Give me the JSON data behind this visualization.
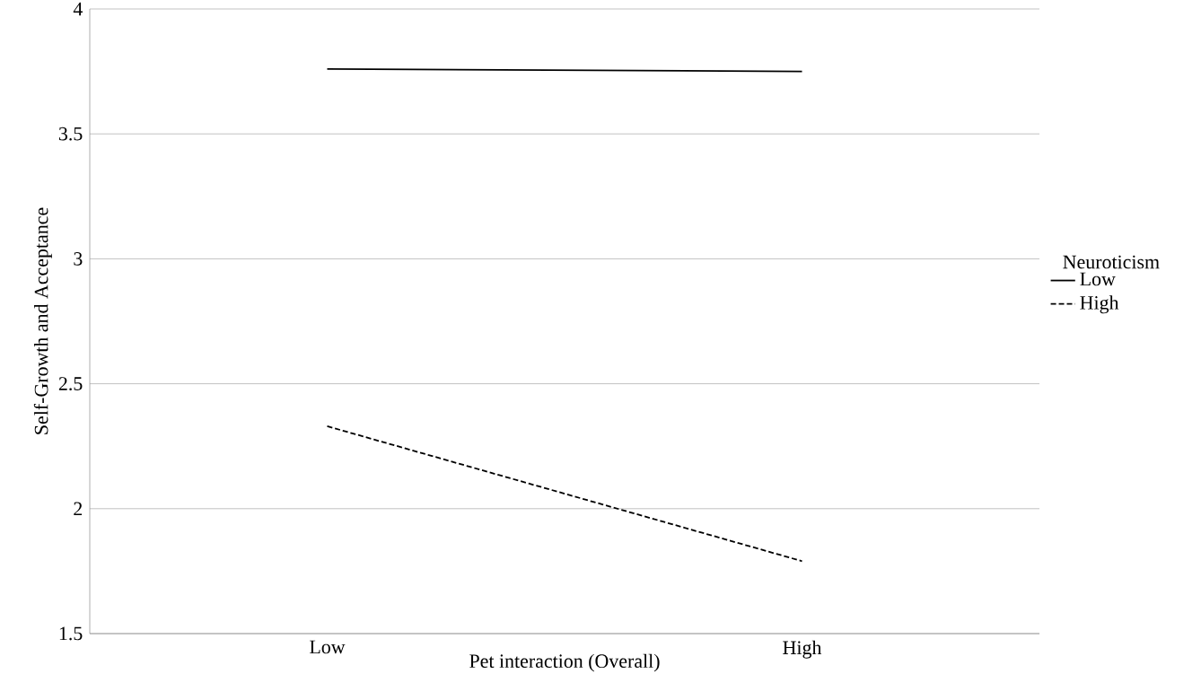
{
  "chart_data": {
    "type": "line",
    "xlabel": "Pet interaction (Overall)",
    "ylabel": "Self-Growth and Acceptance",
    "categories": [
      "Low",
      "High"
    ],
    "series": [
      {
        "name": "Low",
        "color": "#000000",
        "values": [
          3.76,
          3.75
        ],
        "line_style": "solid"
      },
      {
        "name": "High",
        "color": "#000000",
        "values": [
          2.33,
          1.79
        ],
        "line_style": "dashed"
      }
    ],
    "legend_title": "Neuroticism",
    "legend": "right",
    "ylim": [
      1.5,
      4
    ],
    "yticks": [
      1.5,
      2,
      2.5,
      3,
      3.5,
      4
    ],
    "grid": "y",
    "marker": "none"
  }
}
